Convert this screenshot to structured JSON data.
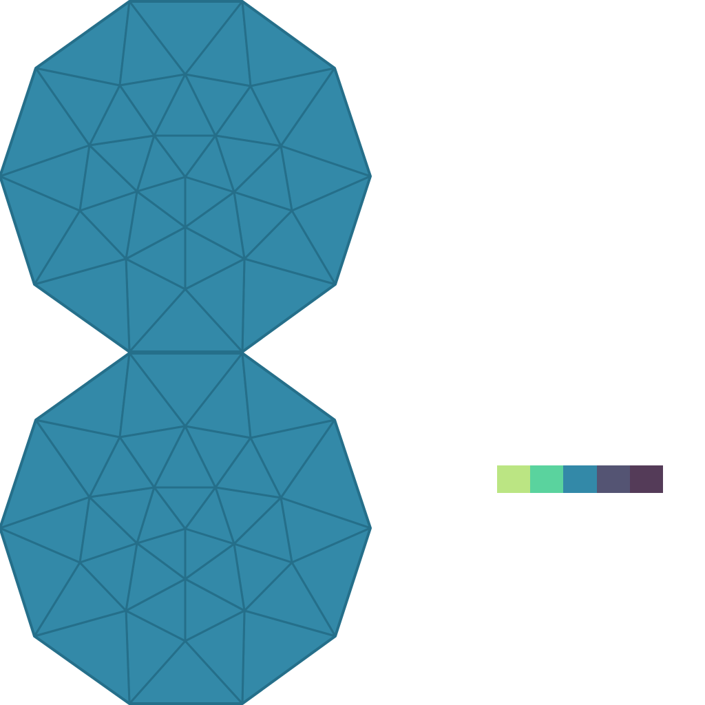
{
  "board": {
    "tile_color": "#3389a8",
    "edge_color": "#256f8a"
  },
  "palette": {
    "colors": [
      "#bbe583",
      "#5ad39e",
      "#3389a8",
      "#545473",
      "#543b58"
    ],
    "selected_index": 2
  }
}
